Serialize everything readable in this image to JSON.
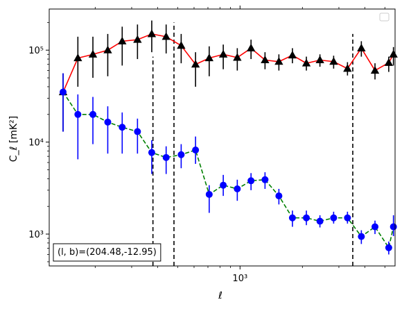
{
  "chart_data": {
    "type": "scatter",
    "title": "",
    "xlabel": "ℓ",
    "ylabel": "C_ℓ [mK²]",
    "xscale": "log",
    "yscale": "log",
    "xlim": [
      120,
      5600
    ],
    "ylim": [
      450,
      280000
    ],
    "x_major_ticks": [
      {
        "value": 1000,
        "label": "10³"
      }
    ],
    "x_minor_ticks": [
      200,
      300,
      400,
      500,
      600,
      700,
      800,
      900,
      2000,
      3000,
      4000,
      5000
    ],
    "y_major_ticks": [
      {
        "value": 1000,
        "label": "10³"
      },
      {
        "value": 10000,
        "label": "10⁴"
      },
      {
        "value": 100000,
        "label": "10⁵"
      }
    ],
    "vlines": [
      {
        "x": 380,
        "y_top": 85000,
        "style": "dashed",
        "color": "#000000"
      },
      {
        "x": 480,
        "y_top": 200000,
        "style": "dashed",
        "color": "#000000"
      },
      {
        "x": 3500,
        "y_top": 150000,
        "style": "dashed",
        "color": "#000000"
      }
    ],
    "annotation": "(l, b)=(204.48,-12.95)",
    "legend": {
      "placement": "upper right",
      "entries": []
    },
    "series": [
      {
        "marker": "triangle",
        "marker_color": "#000000",
        "line_color": "#ff0000",
        "line_style": "solid",
        "points": [
          {
            "x": 140,
            "y": 35000,
            "lo": 13000,
            "hi": 56000
          },
          {
            "x": 165,
            "y": 82000,
            "lo": 40000,
            "hi": 140000
          },
          {
            "x": 195,
            "y": 90000,
            "lo": 50000,
            "hi": 140000
          },
          {
            "x": 230,
            "y": 100000,
            "lo": 52000,
            "hi": 150000
          },
          {
            "x": 270,
            "y": 125000,
            "lo": 68000,
            "hi": 180000
          },
          {
            "x": 320,
            "y": 130000,
            "lo": 80000,
            "hi": 190000
          },
          {
            "x": 375,
            "y": 150000,
            "lo": 95000,
            "hi": 210000
          },
          {
            "x": 440,
            "y": 140000,
            "lo": 92000,
            "hi": 190000
          },
          {
            "x": 520,
            "y": 112000,
            "lo": 72000,
            "hi": 150000
          },
          {
            "x": 610,
            "y": 70000,
            "lo": 40000,
            "hi": 95000
          },
          {
            "x": 710,
            "y": 82000,
            "lo": 52000,
            "hi": 110000
          },
          {
            "x": 830,
            "y": 90000,
            "lo": 62000,
            "hi": 115000
          },
          {
            "x": 970,
            "y": 83000,
            "lo": 60000,
            "hi": 105000
          },
          {
            "x": 1130,
            "y": 105000,
            "lo": 80000,
            "hi": 130000
          },
          {
            "x": 1320,
            "y": 78000,
            "lo": 62000,
            "hi": 95000
          },
          {
            "x": 1540,
            "y": 75000,
            "lo": 60000,
            "hi": 90000
          },
          {
            "x": 1790,
            "y": 88000,
            "lo": 72000,
            "hi": 105000
          },
          {
            "x": 2090,
            "y": 72000,
            "lo": 60000,
            "hi": 85000
          },
          {
            "x": 2430,
            "y": 78000,
            "lo": 66000,
            "hi": 90000
          },
          {
            "x": 2830,
            "y": 75000,
            "lo": 63000,
            "hi": 87000
          },
          {
            "x": 3300,
            "y": 63000,
            "lo": 53000,
            "hi": 74000
          },
          {
            "x": 3850,
            "y": 105000,
            "lo": 85000,
            "hi": 125000
          },
          {
            "x": 4480,
            "y": 60000,
            "lo": 48000,
            "hi": 72000
          },
          {
            "x": 5220,
            "y": 73000,
            "lo": 58000,
            "hi": 85000
          },
          {
            "x": 5500,
            "y": 90000,
            "lo": 68000,
            "hi": 108000
          }
        ]
      },
      {
        "marker": "circle",
        "marker_color": "#0000ff",
        "line_color": "#008000",
        "line_style": "dashed",
        "points": [
          {
            "x": 140,
            "y": 35000,
            "lo": 13000,
            "hi": 56000
          },
          {
            "x": 165,
            "y": 20000,
            "lo": 6500,
            "hi": 33000
          },
          {
            "x": 195,
            "y": 20000,
            "lo": 9500,
            "hi": 31000
          },
          {
            "x": 230,
            "y": 16500,
            "lo": 7500,
            "hi": 24500
          },
          {
            "x": 270,
            "y": 14500,
            "lo": 7500,
            "hi": 21000
          },
          {
            "x": 320,
            "y": 13000,
            "lo": 7500,
            "hi": 18000
          },
          {
            "x": 375,
            "y": 7700,
            "lo": 4500,
            "hi": 10500
          },
          {
            "x": 440,
            "y": 6800,
            "lo": 4500,
            "hi": 9000
          },
          {
            "x": 520,
            "y": 7300,
            "lo": 5200,
            "hi": 9500
          },
          {
            "x": 610,
            "y": 8200,
            "lo": 5800,
            "hi": 11500
          },
          {
            "x": 710,
            "y": 2700,
            "lo": 1700,
            "hi": 3400
          },
          {
            "x": 830,
            "y": 3400,
            "lo": 2600,
            "hi": 4400
          },
          {
            "x": 970,
            "y": 3100,
            "lo": 2300,
            "hi": 3900
          },
          {
            "x": 1130,
            "y": 3800,
            "lo": 3000,
            "hi": 4600
          },
          {
            "x": 1320,
            "y": 3900,
            "lo": 3100,
            "hi": 4700
          },
          {
            "x": 1540,
            "y": 2600,
            "lo": 2100,
            "hi": 3100
          },
          {
            "x": 1790,
            "y": 1500,
            "lo": 1200,
            "hi": 1800
          },
          {
            "x": 2090,
            "y": 1500,
            "lo": 1250,
            "hi": 1800
          },
          {
            "x": 2430,
            "y": 1380,
            "lo": 1180,
            "hi": 1600
          },
          {
            "x": 2830,
            "y": 1500,
            "lo": 1300,
            "hi": 1750
          },
          {
            "x": 3300,
            "y": 1500,
            "lo": 1300,
            "hi": 1750
          },
          {
            "x": 3850,
            "y": 940,
            "lo": 780,
            "hi": 1100
          },
          {
            "x": 4480,
            "y": 1200,
            "lo": 1000,
            "hi": 1400
          },
          {
            "x": 5220,
            "y": 710,
            "lo": 600,
            "hi": 830
          },
          {
            "x": 5500,
            "y": 1200,
            "lo": 950,
            "hi": 1600
          }
        ]
      }
    ]
  }
}
